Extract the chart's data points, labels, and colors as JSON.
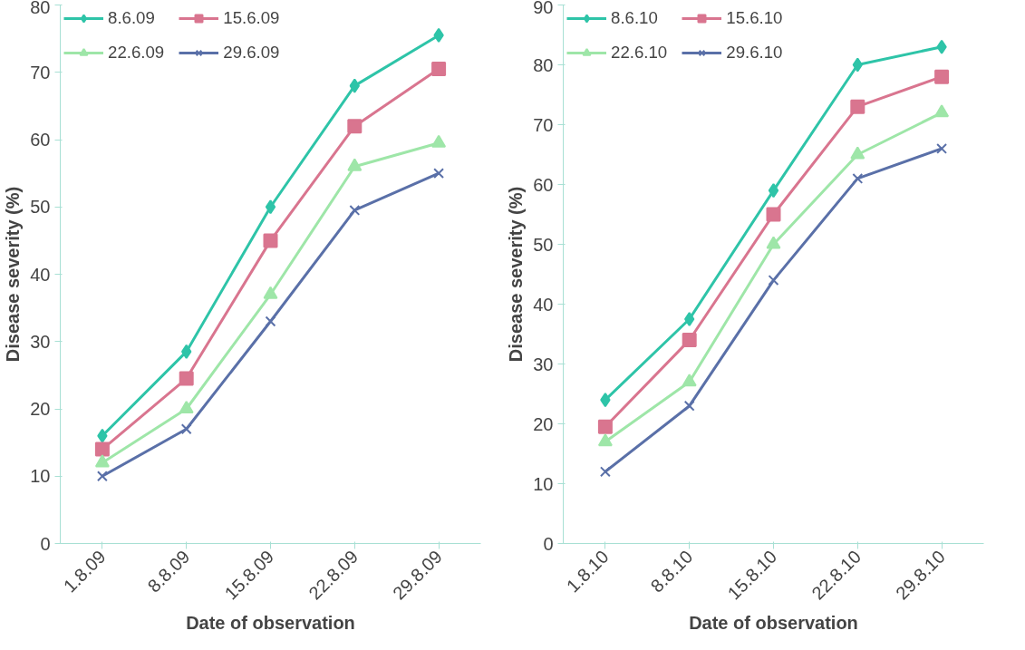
{
  "chart_data": [
    {
      "type": "line",
      "categories": [
        "1.8.09",
        "8.8.09",
        "15.8.09",
        "22.8.09",
        "29.8.09"
      ],
      "xlabel": "Date of observation",
      "ylabel": "Disease severity (%)",
      "ylim": [
        0,
        80
      ],
      "yticks": [
        0,
        10,
        20,
        30,
        40,
        50,
        60,
        70,
        80
      ],
      "grid": false,
      "legend": "top",
      "series": [
        {
          "name": "8.6.09",
          "color": "#2ec4a8",
          "marker": "diamond",
          "values": [
            16,
            28.5,
            50,
            68,
            75.5
          ]
        },
        {
          "name": "15.6.09",
          "color": "#d9758f",
          "marker": "square",
          "values": [
            14,
            24.5,
            45,
            62,
            70.5
          ]
        },
        {
          "name": "22.6.09",
          "color": "#9ee6a8",
          "marker": "triangle",
          "values": [
            12,
            20,
            37,
            56,
            59.5
          ]
        },
        {
          "name": "29.6.09",
          "color": "#5a70a8",
          "marker": "cross",
          "values": [
            10,
            17,
            33,
            49.5,
            55
          ]
        }
      ]
    },
    {
      "type": "line",
      "categories": [
        "1.8.10",
        "8.8.10",
        "15.8.10",
        "22.8.10",
        "29.8.10"
      ],
      "xlabel": "Date of observation",
      "ylabel": "Disease severity (%)",
      "ylim": [
        0,
        90
      ],
      "yticks": [
        0,
        10,
        20,
        30,
        40,
        50,
        60,
        70,
        80,
        90
      ],
      "grid": false,
      "legend": "top",
      "series": [
        {
          "name": "8.6.10",
          "color": "#2ec4a8",
          "marker": "diamond",
          "values": [
            24,
            37.5,
            59,
            80,
            83
          ]
        },
        {
          "name": "15.6.10",
          "color": "#d9758f",
          "marker": "square",
          "values": [
            19.5,
            34,
            55,
            73,
            78
          ]
        },
        {
          "name": "22.6.10",
          "color": "#9ee6a8",
          "marker": "triangle",
          "values": [
            17,
            27,
            50,
            65,
            72
          ]
        },
        {
          "name": "29.6.10",
          "color": "#5a70a8",
          "marker": "cross",
          "values": [
            12,
            23,
            44,
            61,
            66
          ]
        }
      ]
    }
  ]
}
